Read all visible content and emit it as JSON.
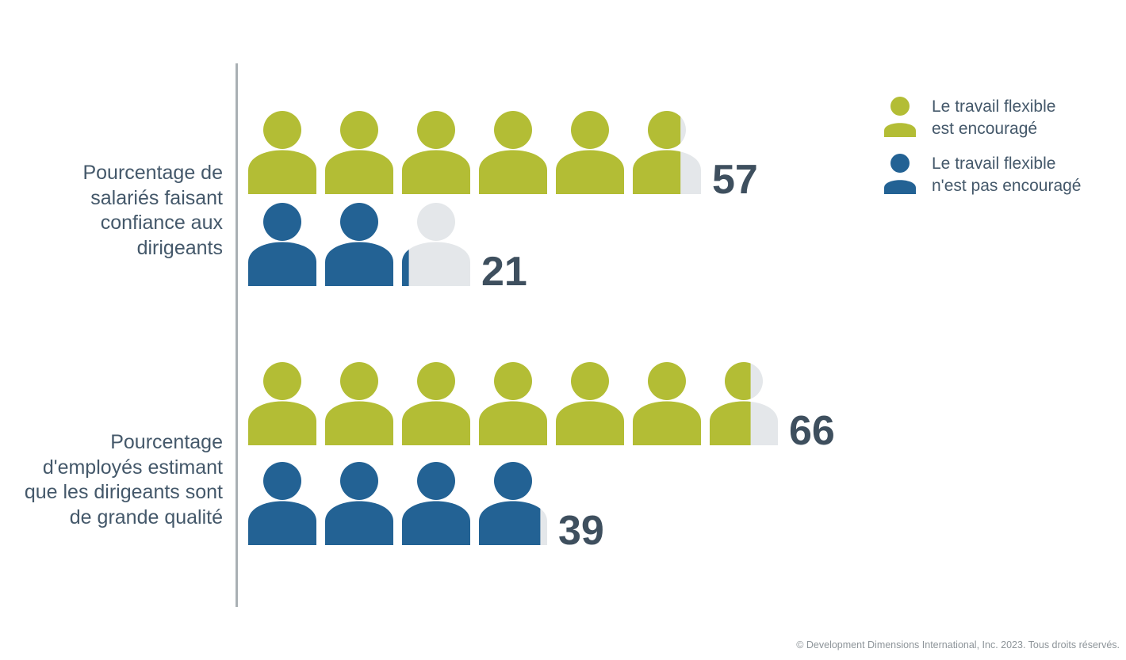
{
  "chart_data": {
    "type": "pictograph",
    "unit": "1 icône = 10 %",
    "groups": [
      {
        "label_lines": [
          "Pourcentage de",
          "salariés faisant",
          "confiance aux",
          "dirigeants"
        ],
        "values": [
          57,
          21
        ]
      },
      {
        "label_lines": [
          "Pourcentage",
          "d'employés estimant",
          "que les dirigeants sont",
          "de grande qualité"
        ],
        "values": [
          66,
          39
        ]
      }
    ],
    "series": [
      {
        "name_lines": [
          "Le travail flexible",
          "est encouragé"
        ],
        "color": "#b3bd35"
      },
      {
        "name_lines": [
          "Le travail flexible",
          "n'est pas encouragé"
        ],
        "color": "#236294"
      }
    ],
    "empty_color": "#e4e7ea",
    "value_color": "#3e4f5e",
    "legend_position": "top-right"
  },
  "footer": {
    "copyright": "© Development Dimensions International, Inc. 2023. Tous droits réservés."
  }
}
